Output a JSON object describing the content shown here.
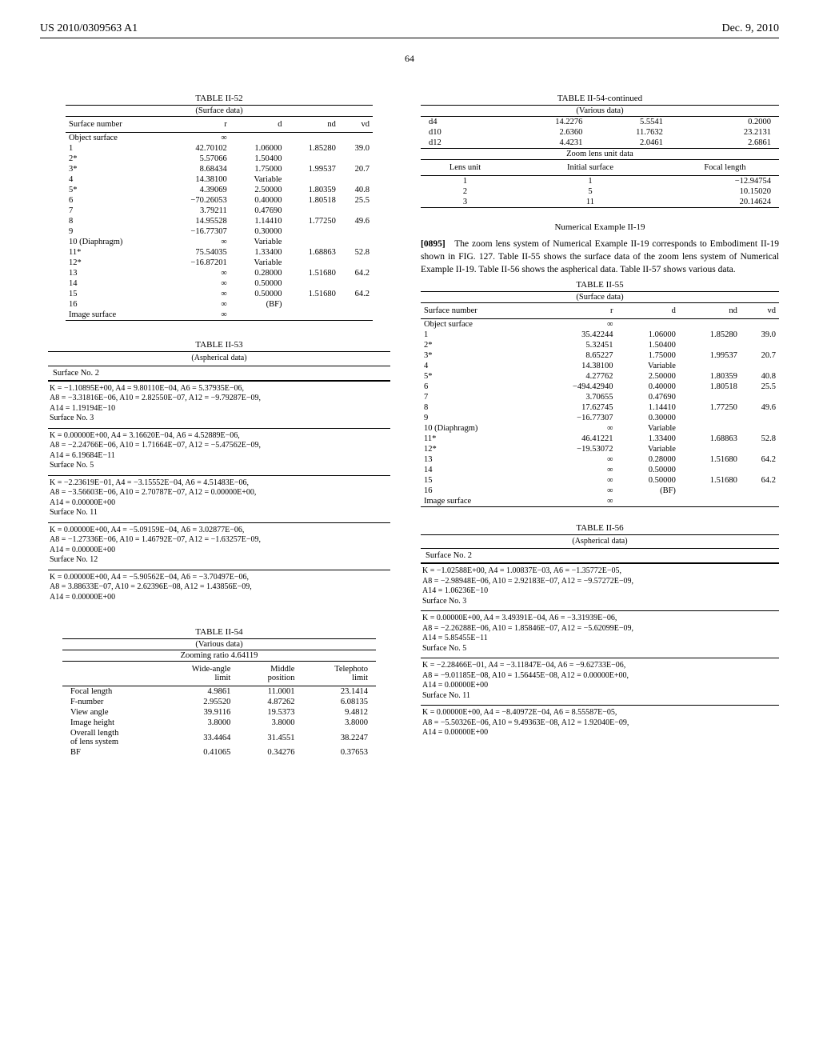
{
  "header": {
    "pub_no": "US 2010/0309563 A1",
    "pub_date": "Dec. 9, 2010"
  },
  "page_no": "64",
  "t52": {
    "title": "TABLE II-52",
    "sub": "(Surface data)",
    "cols": [
      "Surface number",
      "r",
      "d",
      "nd",
      "vd"
    ],
    "rows": [
      [
        "Object surface",
        "∞",
        "",
        "",
        ""
      ],
      [
        "1",
        "42.70102",
        "1.06000",
        "1.85280",
        "39.0"
      ],
      [
        "2*",
        "5.57066",
        "1.50400",
        "",
        ""
      ],
      [
        "3*",
        "8.68434",
        "1.75000",
        "1.99537",
        "20.7"
      ],
      [
        "4",
        "14.38100",
        "Variable",
        "",
        ""
      ],
      [
        "5*",
        "4.39069",
        "2.50000",
        "1.80359",
        "40.8"
      ],
      [
        "6",
        "−70.26053",
        "0.40000",
        "1.80518",
        "25.5"
      ],
      [
        "7",
        "3.79211",
        "0.47690",
        "",
        ""
      ],
      [
        "8",
        "14.95528",
        "1.14410",
        "1.77250",
        "49.6"
      ],
      [
        "9",
        "−16.77307",
        "0.30000",
        "",
        ""
      ],
      [
        "10 (Diaphragm)",
        "∞",
        "Variable",
        "",
        ""
      ],
      [
        "11*",
        "75.54035",
        "1.33400",
        "1.68863",
        "52.8"
      ],
      [
        "12*",
        "−16.87201",
        "Variable",
        "",
        ""
      ],
      [
        "13",
        "∞",
        "0.28000",
        "1.51680",
        "64.2"
      ],
      [
        "14",
        "∞",
        "0.50000",
        "",
        ""
      ],
      [
        "15",
        "∞",
        "0.50000",
        "1.51680",
        "64.2"
      ],
      [
        "16",
        "∞",
        "(BF)",
        "",
        ""
      ],
      [
        "Image surface",
        "∞",
        "",
        "",
        ""
      ]
    ]
  },
  "t53": {
    "title": "TABLE II-53",
    "sub": "(Aspherical data)",
    "blocks": [
      {
        "hdr": "Surface No. 2",
        "lines": [
          "K = −1.10895E+00, A4 = 9.80110E−04, A6 = 5.37935E−06,",
          "A8 = −3.31816E−06, A10 = 2.82550E−07, A12 = −9.79287E−09,",
          "A14 = 1.19194E−10",
          "Surface No. 3"
        ]
      },
      {
        "hdr": null,
        "lines": [
          "K = 0.00000E+00, A4 = 3.16620E−04, A6 = 4.52889E−06,",
          "A8 = −2.24766E−06, A10 = 1.71664E−07, A12 = −5.47562E−09,",
          "A14 = 6.19684E−11",
          "Surface No. 5"
        ]
      },
      {
        "hdr": null,
        "lines": [
          "K = −2.23619E−01, A4 = −3.15552E−04, A6 = 4.51483E−06,",
          "A8 = −3.56603E−06, A10 = 2.70787E−07, A12 = 0.00000E+00,",
          "A14 = 0.00000E+00",
          "Surface No. 11"
        ]
      },
      {
        "hdr": null,
        "lines": [
          "K = 0.00000E+00, A4 = −5.09159E−04, A6 = 3.02877E−06,",
          "A8 = −1.27336E−06, A10 = 1.46792E−07, A12 = −1.63257E−09,",
          "A14 = 0.00000E+00",
          "Surface No. 12"
        ]
      },
      {
        "hdr": null,
        "lines": [
          "K = 0.00000E+00, A4 = −5.90562E−04, A6 = −3.70497E−06,",
          "A8 = 3.88633E−07, A10 = 2.62396E−08, A12 = 1.43856E−09,",
          "A14 = 0.00000E+00"
        ]
      }
    ]
  },
  "t54": {
    "title": "TABLE II-54",
    "sub": "(Various data)",
    "zoom": "Zooming ratio 4.64119",
    "cols": [
      "",
      "Wide-angle\nlimit",
      "Middle\nposition",
      "Telephoto\nlimit"
    ],
    "rows": [
      [
        "Focal length",
        "4.9861",
        "11.0001",
        "23.1414"
      ],
      [
        "F-number",
        "2.95520",
        "4.87262",
        "6.08135"
      ],
      [
        "View angle",
        "39.9116",
        "19.5373",
        "9.4812"
      ],
      [
        "Image height",
        "3.8000",
        "3.8000",
        "3.8000"
      ],
      [
        "Overall length\nof lens system",
        "33.4464",
        "31.4551",
        "38.2247"
      ],
      [
        "BF",
        "0.41065",
        "0.34276",
        "0.37653"
      ]
    ]
  },
  "t54c": {
    "title": "TABLE II-54-continued",
    "sub": "(Various data)",
    "rows_top": [
      [
        "d4",
        "14.2276",
        "5.5541",
        "0.2000"
      ],
      [
        "d10",
        "2.6360",
        "11.7632",
        "23.2131"
      ],
      [
        "d12",
        "4.4231",
        "2.0461",
        "2.6861"
      ]
    ],
    "zsub": "Zoom lens unit data",
    "cols2": [
      "Lens unit",
      "Initial surface",
      "Focal length"
    ],
    "rows2": [
      [
        "1",
        "1",
        "−12.94754"
      ],
      [
        "2",
        "5",
        "10.15020"
      ],
      [
        "3",
        "11",
        "20.14624"
      ]
    ]
  },
  "ex19": {
    "title": "Numerical Example II-19",
    "para_ref": "[0895]",
    "para": "The zoom lens system of Numerical Example II-19 corresponds to Embodiment II-19 shown in FIG. 127. Table II-55 shows the surface data of the zoom lens system of Numerical Example II-19. Table II-56 shows the aspherical data. Table II-57 shows various data."
  },
  "t55": {
    "title": "TABLE II-55",
    "sub": "(Surface data)",
    "cols": [
      "Surface number",
      "r",
      "d",
      "nd",
      "vd"
    ],
    "rows": [
      [
        "Object surface",
        "∞",
        "",
        "",
        ""
      ],
      [
        "1",
        "35.42244",
        "1.06000",
        "1.85280",
        "39.0"
      ],
      [
        "2*",
        "5.32451",
        "1.50400",
        "",
        ""
      ],
      [
        "3*",
        "8.65227",
        "1.75000",
        "1.99537",
        "20.7"
      ],
      [
        "4",
        "14.38100",
        "Variable",
        "",
        ""
      ],
      [
        "5*",
        "4.27762",
        "2.50000",
        "1.80359",
        "40.8"
      ],
      [
        "6",
        "−494.42940",
        "0.40000",
        "1.80518",
        "25.5"
      ],
      [
        "7",
        "3.70655",
        "0.47690",
        "",
        ""
      ],
      [
        "8",
        "17.62745",
        "1.14410",
        "1.77250",
        "49.6"
      ],
      [
        "9",
        "−16.77307",
        "0.30000",
        "",
        ""
      ],
      [
        "10 (Diaphragm)",
        "∞",
        "Variable",
        "",
        ""
      ],
      [
        "11*",
        "46.41221",
        "1.33400",
        "1.68863",
        "52.8"
      ],
      [
        "12*",
        "−19.53072",
        "Variable",
        "",
        ""
      ],
      [
        "13",
        "∞",
        "0.28000",
        "1.51680",
        "64.2"
      ],
      [
        "14",
        "∞",
        "0.50000",
        "",
        ""
      ],
      [
        "15",
        "∞",
        "0.50000",
        "1.51680",
        "64.2"
      ],
      [
        "16",
        "∞",
        "(BF)",
        "",
        ""
      ],
      [
        "Image surface",
        "∞",
        "",
        "",
        ""
      ]
    ]
  },
  "t56": {
    "title": "TABLE II-56",
    "sub": "(Aspherical data)",
    "blocks": [
      {
        "hdr": "Surface No. 2",
        "lines": [
          "K = −1.02588E+00, A4 = 1.00837E−03, A6 = −1.35772E−05,",
          "A8 = −2.98948E−06, A10 = 2.92183E−07, A12 = −9.57272E−09,",
          "A14 = 1.06236E−10",
          "Surface No. 3"
        ]
      },
      {
        "hdr": null,
        "lines": [
          "K = 0.00000E+00, A4 = 3.49391E−04, A6 = −3.31939E−06,",
          "A8 = −2.26288E−06, A10 = 1.85846E−07, A12 = −5.62099E−09,",
          "A14 = 5.85455E−11",
          "Surface No. 5"
        ]
      },
      {
        "hdr": null,
        "lines": [
          "K = −2.28466E−01, A4 = −3.11847E−04, A6 = −9.62733E−06,",
          "A8 = −9.01185E−08, A10 = 1.56445E−08, A12 = 0.00000E+00,",
          "A14 = 0.00000E+00",
          "Surface No. 11"
        ]
      },
      {
        "hdr": null,
        "lines": [
          "K = 0.00000E+00, A4 = −8.40972E−04, A6 = 8.55587E−05,",
          "A8 = −5.50326E−06, A10 = 9.49363E−08, A12 = 1.92040E−09,",
          "A14 = 0.00000E+00"
        ]
      }
    ]
  }
}
